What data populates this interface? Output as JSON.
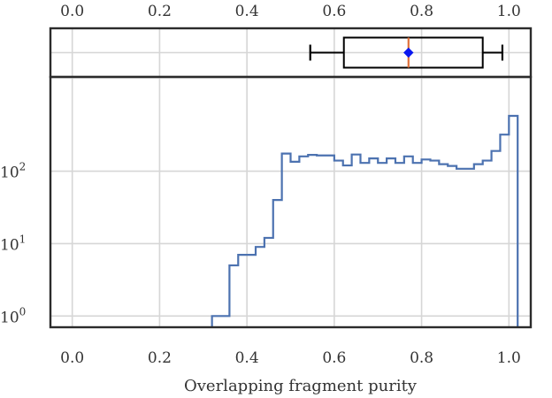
{
  "chart_data": [
    {
      "type": "box",
      "x_ticks": [
        "0.0",
        "0.2",
        "0.4",
        "0.6",
        "0.8",
        "1.0"
      ],
      "xlim": [
        -0.05,
        1.05
      ],
      "tick_position": "top",
      "grid": true,
      "whisker_low": 0.545,
      "q1": 0.622,
      "median": 0.77,
      "mean": 0.77,
      "q3": 0.94,
      "whisker_high": 0.985,
      "colors": {
        "box": "#000000",
        "median": "#e0703a",
        "mean": "#0a18f0"
      }
    },
    {
      "type": "histogram",
      "xlabel": "Overlapping fragment purity",
      "x_ticks": [
        "0.0",
        "0.2",
        "0.4",
        "0.6",
        "0.8",
        "1.0"
      ],
      "xlim": [
        -0.05,
        1.05
      ],
      "yscale": "log",
      "ylim": [
        0.7,
        2000
      ],
      "y_ticks": [
        {
          "value": 1,
          "base": "10",
          "exp": "0"
        },
        {
          "value": 10,
          "base": "10",
          "exp": "1"
        },
        {
          "value": 100,
          "base": "10",
          "exp": "2"
        }
      ],
      "grid": true,
      "bin_width": 0.02,
      "bin_edges_start": 0.0,
      "counts": [
        0,
        0,
        0,
        0,
        0,
        0,
        0,
        0,
        0,
        0,
        0,
        0,
        0,
        0,
        0,
        0,
        1,
        1,
        5,
        7,
        7,
        9,
        12,
        40,
        175,
        135,
        160,
        168,
        165,
        165,
        140,
        120,
        170,
        130,
        150,
        130,
        150,
        130,
        160,
        130,
        145,
        140,
        125,
        118,
        108,
        108,
        125,
        140,
        190,
        320,
        580
      ],
      "color": "#4c72b0"
    }
  ]
}
